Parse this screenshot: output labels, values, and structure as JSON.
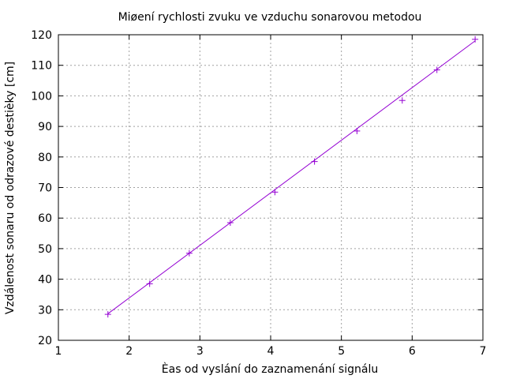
{
  "chart_data": {
    "type": "scatter",
    "title": "Miøení rychlosti zvuku ve vzduchu sonarovou metodou",
    "xlabel": "Èas od vyslání do zaznamenání signálu",
    "ylabel": "Vzdálenost sonaru od odrazové destièky [cm]",
    "xlim": [
      1,
      7
    ],
    "ylim": [
      20,
      120
    ],
    "xticks": [
      1,
      2,
      3,
      4,
      5,
      6,
      7
    ],
    "yticks": [
      20,
      30,
      40,
      50,
      60,
      70,
      80,
      90,
      100,
      110,
      120
    ],
    "grid": true,
    "series": [
      {
        "x": [
          1.7,
          2.29,
          2.85,
          3.43,
          4.06,
          4.62,
          5.22,
          5.86,
          6.35,
          6.89
        ],
        "y": [
          28.5,
          38.5,
          48.5,
          58.5,
          68.5,
          78.5,
          88.5,
          98.5,
          108.5,
          118.5
        ],
        "color": "#9400d3",
        "marker": "plus"
      }
    ],
    "fit_line": {
      "x": [
        1.7,
        6.89
      ],
      "y": [
        28.7,
        118.0
      ],
      "color": "#9400d3"
    }
  }
}
